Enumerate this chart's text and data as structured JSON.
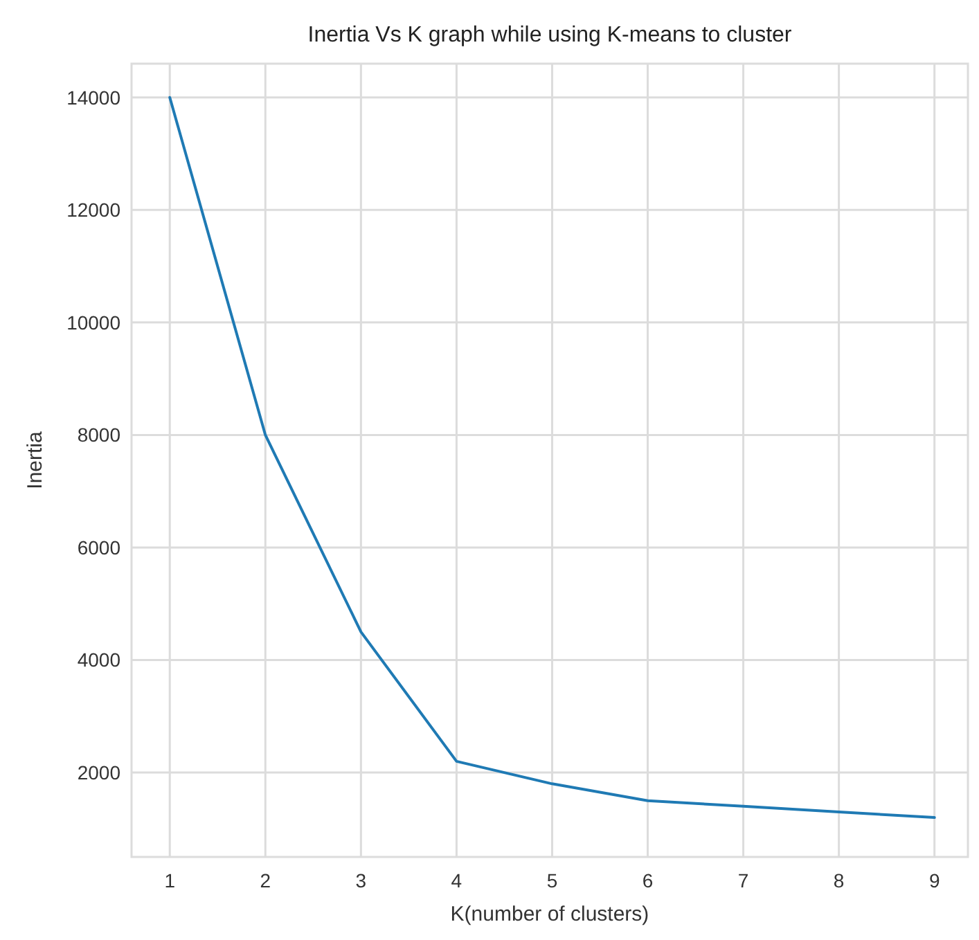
{
  "chart_data": {
    "type": "line",
    "title": "Inertia Vs K graph while using K-means to cluster",
    "xlabel": "K(number of clusters)",
    "ylabel": "Inertia",
    "x": [
      1,
      2,
      3,
      4,
      5,
      6,
      7,
      8,
      9
    ],
    "series": [
      {
        "color": "#1f7ab4",
        "values": [
          14000,
          8000,
          4500,
          2200,
          1800,
          1500,
          1400,
          1300,
          1200
        ]
      }
    ],
    "xlim": [
      0.6,
      9.35
    ],
    "xticks": [
      1,
      2,
      3,
      4,
      5,
      6,
      7,
      8,
      9
    ],
    "ylim": [
      500,
      14600
    ],
    "yticks": [
      2000,
      4000,
      6000,
      8000,
      10000,
      12000,
      14000
    ],
    "grid": true,
    "marker": "none",
    "line_style": "solid"
  }
}
